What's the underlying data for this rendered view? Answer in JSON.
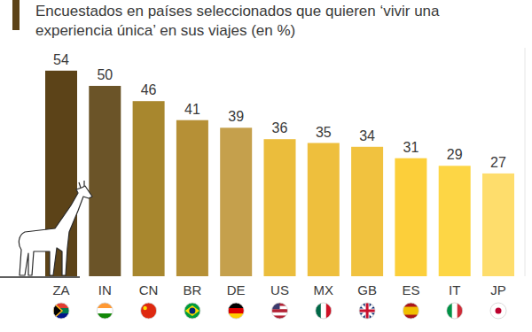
{
  "chart_data": {
    "type": "bar",
    "title": "Encuestados en países seleccionados que quieren ‘vivir una experiencia única’ en sus viajes (en %)",
    "categories": [
      "ZA",
      "IN",
      "CN",
      "BR",
      "DE",
      "US",
      "MX",
      "GB",
      "ES",
      "IT",
      "JP"
    ],
    "values": [
      54,
      50,
      46,
      41,
      39,
      36,
      35,
      34,
      31,
      29,
      27
    ],
    "colors": [
      "#5c4318",
      "#6b5428",
      "#a8872e",
      "#b69036",
      "#c5a04c",
      "#ebbd3c",
      "#eebf3d",
      "#f1c23f",
      "#fccf3a",
      "#fdd645",
      "#fedd6c"
    ],
    "ylim": [
      0,
      60
    ],
    "yticks": [
      0
    ],
    "grid": false,
    "data_labels": true,
    "tick_labels": "x"
  }
}
